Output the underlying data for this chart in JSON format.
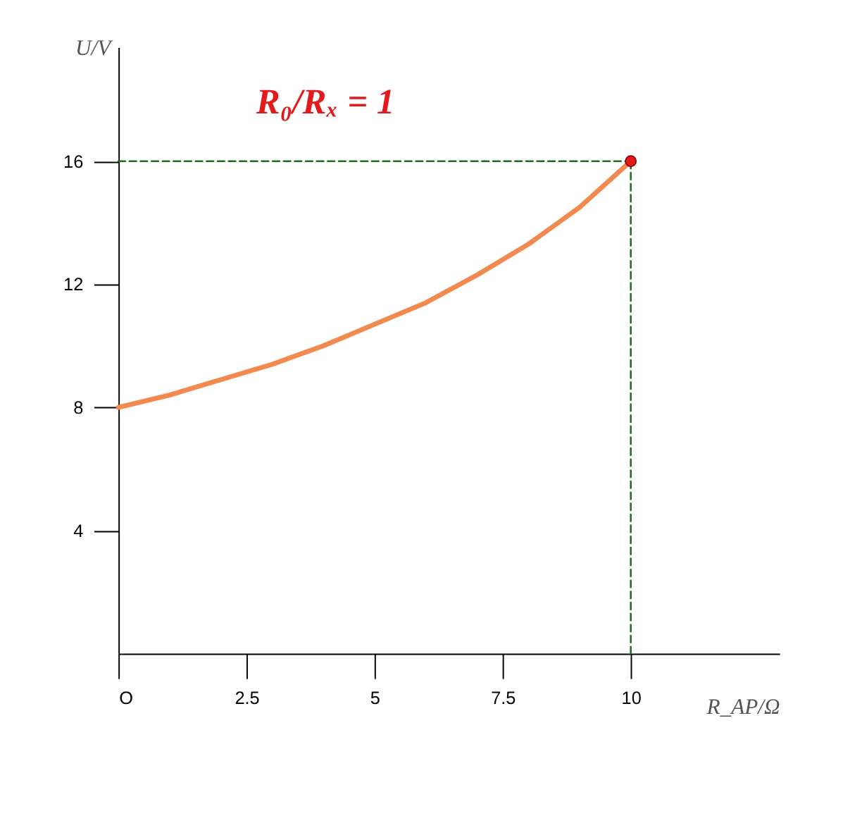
{
  "chart_data": {
    "type": "line",
    "xlabel": "R_AP/Ω",
    "ylabel": "U/V",
    "annotations": [
      "R₀/Rₓ = 1"
    ],
    "xlim": [
      0,
      12.9
    ],
    "ylim": [
      0,
      19.7
    ],
    "xticks": [
      {
        "value": 0,
        "label": "O"
      },
      2.5,
      5,
      7.5,
      10
    ],
    "yticks": [
      4,
      8,
      12,
      16
    ],
    "grid": false,
    "series": [
      {
        "color": "#f28a50",
        "line_style": "solid",
        "marker": "none",
        "x": [
          0,
          1,
          2,
          3,
          4,
          5,
          6,
          7,
          8,
          9,
          10
        ],
        "values": [
          8,
          8.4,
          8.9,
          9.4,
          10.0,
          10.7,
          11.4,
          12.3,
          13.3,
          14.5,
          16
        ]
      },
      {
        "type": "line",
        "color": "#1f6e1f",
        "line_style": "dashed",
        "marker": "none",
        "x": [
          0,
          10
        ],
        "values": [
          16,
          16
        ]
      },
      {
        "type": "line",
        "color": "#1f6e1f",
        "line_style": "dashed",
        "marker": "none",
        "x": [
          10,
          10
        ],
        "values": [
          0,
          16
        ]
      },
      {
        "type": "scatter",
        "color": "#e3191c",
        "marker": "circle",
        "x": [
          10
        ],
        "values": [
          16
        ]
      }
    ]
  }
}
